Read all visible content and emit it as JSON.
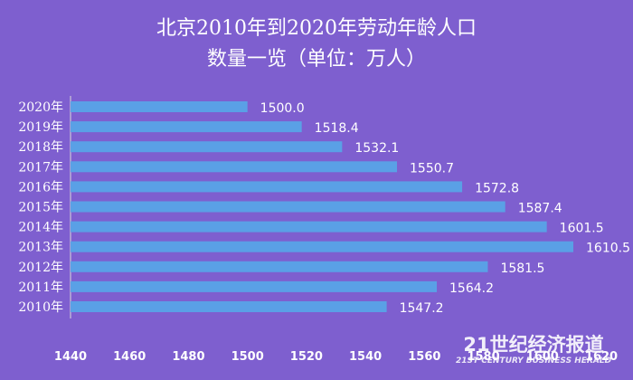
{
  "chart_data": {
    "type": "bar",
    "orientation": "horizontal",
    "title_lines": [
      "北京2010年到2020年劳动年龄人口",
      "数量一览（单位：万人）"
    ],
    "categories": [
      "2020年",
      "2019年",
      "2018年",
      "2017年",
      "2016年",
      "2015年",
      "2014年",
      "2013年",
      "2012年",
      "2011年",
      "2010年"
    ],
    "values": [
      1500.0,
      1518.4,
      1532.1,
      1550.7,
      1572.8,
      1587.4,
      1601.5,
      1610.5,
      1581.5,
      1564.2,
      1547.2
    ],
    "value_labels": [
      "1500.0",
      "1518.4",
      "1532.1",
      "1550.7",
      "1572.8",
      "1587.4",
      "1601.5",
      "1610.5",
      "1581.5",
      "1564.2",
      "1547.2"
    ],
    "xlim": [
      1440,
      1620
    ],
    "xticks": [
      "1440",
      "1460",
      "1480",
      "1500",
      "1520",
      "1540",
      "1560",
      "1580",
      "1600",
      "1620"
    ],
    "grid": false,
    "legend": "none",
    "colors": {
      "background": "#7e5fcf",
      "bar": "#5aa0e6",
      "axis": "#d9d9d9",
      "text": "#ffffff"
    }
  },
  "watermark": {
    "main": "21世纪经济报道",
    "sub": "21ST CENTURY BUSINESS HERALD"
  }
}
